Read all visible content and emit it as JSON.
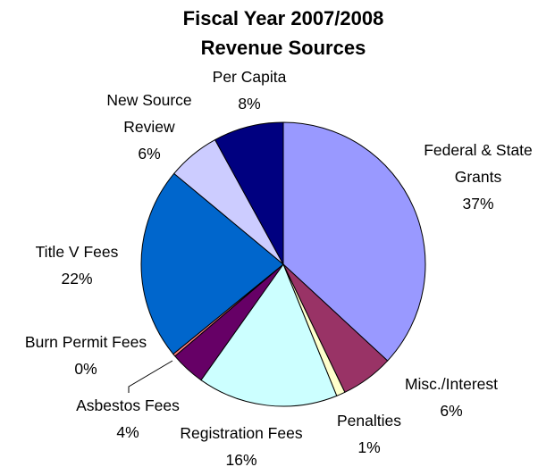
{
  "chart_data": {
    "type": "pie",
    "title": "Fiscal Year 2007/2008",
    "subtitle": "Revenue Sources",
    "slices": [
      {
        "label_lines": [
          "Federal & State",
          "Grants"
        ],
        "pct_label": "37%",
        "value": 37,
        "color": "#9999FF"
      },
      {
        "label_lines": [
          "Misc./Interest"
        ],
        "pct_label": "6%",
        "value": 6,
        "color": "#993366"
      },
      {
        "label_lines": [
          "Penalties"
        ],
        "pct_label": "1%",
        "value": 1,
        "color": "#FFFFCC"
      },
      {
        "label_lines": [
          "Registration Fees"
        ],
        "pct_label": "16%",
        "value": 16,
        "color": "#CCFFFF"
      },
      {
        "label_lines": [
          "Asbestos Fees"
        ],
        "pct_label": "4%",
        "value": 4,
        "color": "#660066"
      },
      {
        "label_lines": [
          "Burn Permit Fees"
        ],
        "pct_label": "0%",
        "value": 0.3,
        "color": "#FF8080"
      },
      {
        "label_lines": [
          "Title V Fees"
        ],
        "pct_label": "22%",
        "value": 22,
        "color": "#0066CC"
      },
      {
        "label_lines": [
          "New Source",
          "Review"
        ],
        "pct_label": "6%",
        "value": 6,
        "color": "#CCCCFF"
      },
      {
        "label_lines": [
          "Per Capita"
        ],
        "pct_label": "8%",
        "value": 8,
        "color": "#000080"
      }
    ]
  }
}
